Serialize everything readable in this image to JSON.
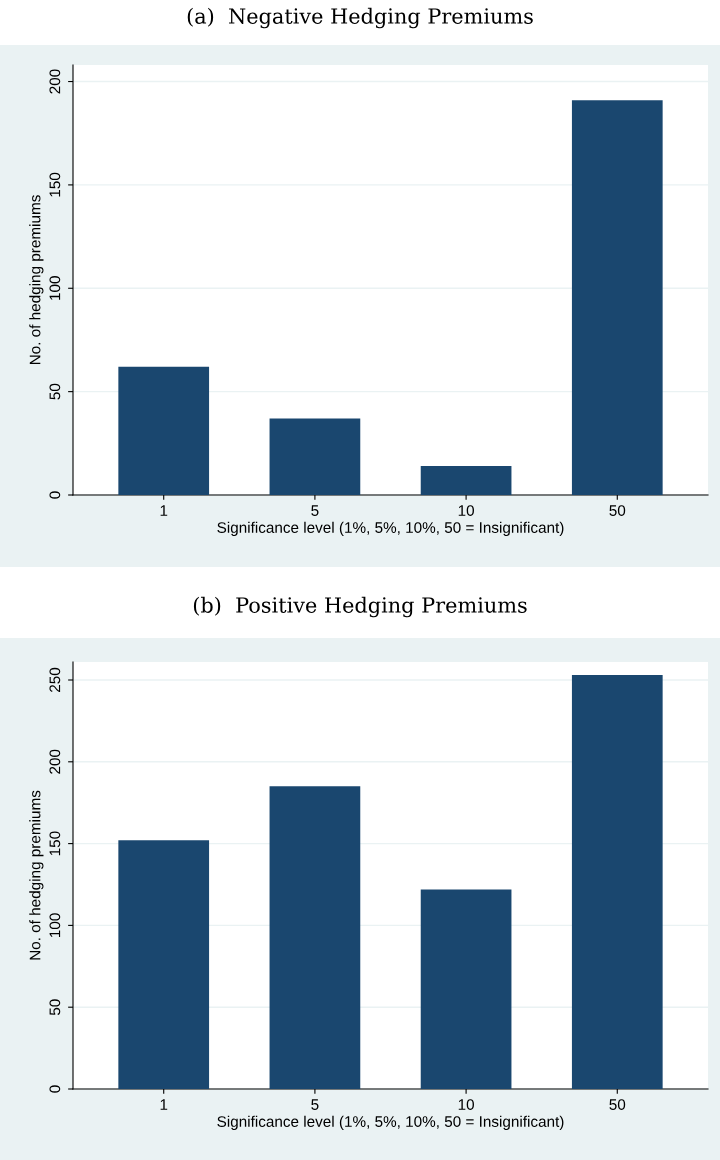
{
  "chart_data": [
    {
      "type": "bar",
      "title": "(a)  Negative Hedging Premiums",
      "xlabel": "Significance level (1%, 5%, 10%, 50 = Insignificant)",
      "ylabel": "No. of hedging premiums",
      "categories": [
        "1",
        "5",
        "10",
        "50"
      ],
      "values": [
        62,
        37,
        14,
        191
      ],
      "color": "#1a476f",
      "ylim": [
        0,
        208
      ],
      "yticks": [
        0,
        50,
        100,
        150,
        200
      ],
      "grid": "y"
    },
    {
      "type": "bar",
      "title": "(b)  Positive Hedging Premiums",
      "xlabel": "Significance level (1%, 5%, 10%, 50 = Insignificant)",
      "ylabel": "No. of hedging premiums",
      "categories": [
        "1",
        "5",
        "10",
        "50"
      ],
      "values": [
        152,
        185,
        122,
        253
      ],
      "color": "#1a476f",
      "ylim": [
        0,
        261
      ],
      "yticks": [
        0,
        50,
        100,
        150,
        200,
        250
      ],
      "grid": "y"
    }
  ]
}
